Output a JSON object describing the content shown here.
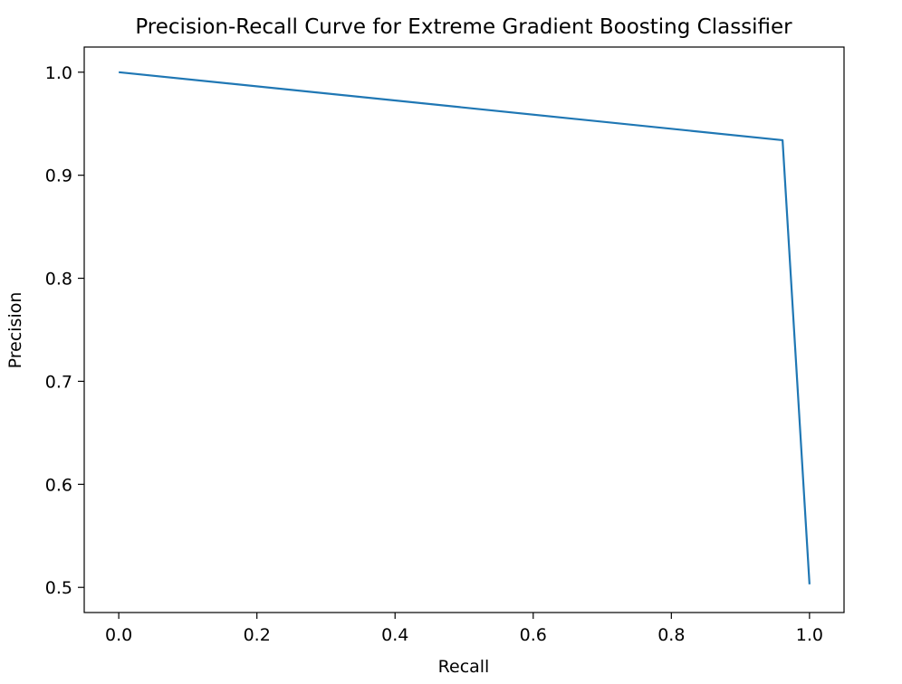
{
  "chart_data": {
    "type": "line",
    "title": "Precision-Recall Curve for Extreme Gradient Boosting Classifier",
    "xlabel": "Recall",
    "ylabel": "Precision",
    "xlim": [
      -0.05,
      1.05
    ],
    "ylim": [
      0.4756,
      1.0244
    ],
    "xticks": [
      0.0,
      0.2,
      0.4,
      0.6,
      0.8,
      1.0
    ],
    "xtick_labels": [
      "0.0",
      "0.2",
      "0.4",
      "0.6",
      "0.8",
      "1.0"
    ],
    "yticks": [
      0.5,
      0.6,
      0.7,
      0.8,
      0.9,
      1.0
    ],
    "ytick_labels": [
      "0.5",
      "0.6",
      "0.7",
      "0.8",
      "0.9",
      "1.0"
    ],
    "grid": false,
    "series": [
      {
        "name": "Precision-Recall",
        "color": "#1f77b4",
        "x": [
          0.0,
          0.961,
          1.0
        ],
        "y": [
          1.0,
          0.934,
          0.503
        ]
      }
    ]
  }
}
